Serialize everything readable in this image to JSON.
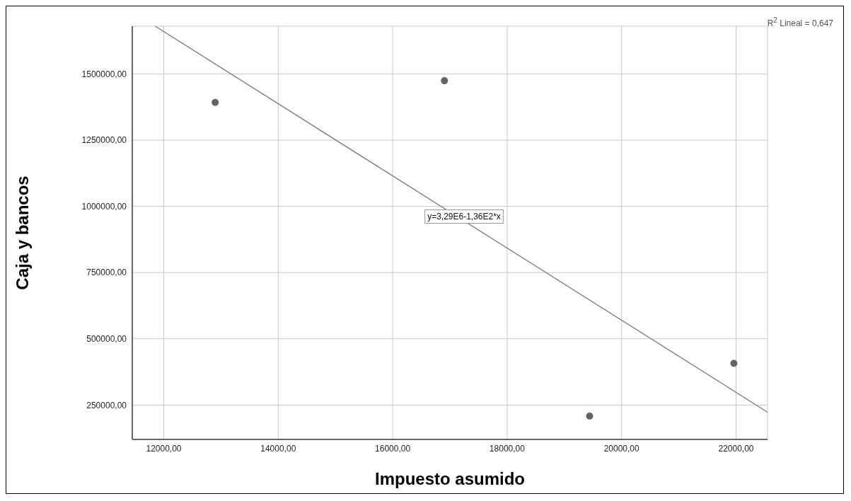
{
  "chart_data": {
    "type": "scatter",
    "xlabel": "Impuesto asumido",
    "ylabel": "Caja y bancos",
    "x": [
      12898,
      16905,
      19441,
      21962
    ],
    "series": [
      {
        "color": "#646464",
        "marker": "circle",
        "values": [
          1392000,
          1474000,
          208000,
          407000
        ]
      },
      {
        "type": "line",
        "marker": "none",
        "color": "#7a7a7a",
        "x": [
          11850,
          22550
        ],
        "values": [
          1680000,
          223000
        ]
      }
    ],
    "grid": true,
    "xlim": [
      11450,
      22550
    ],
    "ylim": [
      120000,
      1680000
    ],
    "xticks": [
      {
        "value": 12000,
        "label": "12000,00"
      },
      {
        "value": 14000,
        "label": "14000,00"
      },
      {
        "value": 16000,
        "label": "16000,00"
      },
      {
        "value": 18000,
        "label": "18000,00"
      },
      {
        "value": 20000,
        "label": "20000,00"
      },
      {
        "value": 22000,
        "label": "22000,00"
      }
    ],
    "yticks": [
      {
        "value": 250000,
        "label": "250000,00"
      },
      {
        "value": 500000,
        "label": "500000,00"
      },
      {
        "value": 750000,
        "label": "750000,00"
      },
      {
        "value": 1000000,
        "label": "1000000,00"
      },
      {
        "value": 1250000,
        "label": "1250000,00"
      },
      {
        "value": 1500000,
        "label": "1500000,00"
      }
    ],
    "annotations": [
      "y=3,29E6-1,36E2*x",
      "R$^{2}$ Lineal = 0,647"
    ]
  }
}
